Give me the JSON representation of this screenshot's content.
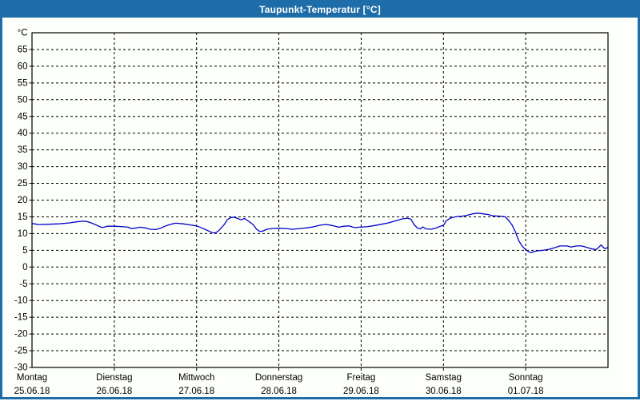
{
  "window": {
    "title": "Taupunkt-Temperatur [°C]",
    "title_bar_color": "#1e6da8",
    "background_color": "#fdfffb"
  },
  "chart_data": {
    "type": "line",
    "title": "Taupunkt-Temperatur [°C]",
    "y_unit_label": "°C",
    "ylabel": "",
    "xlabel": "",
    "ylim": [
      -30,
      70
    ],
    "y_tick_step": 5,
    "y_ticks": [
      65,
      60,
      55,
      50,
      45,
      40,
      35,
      30,
      25,
      20,
      15,
      10,
      5,
      0,
      -5,
      -10,
      -15,
      -20,
      -25,
      -30
    ],
    "xlim_hours": [
      0,
      168
    ],
    "grid": "dashed",
    "legend": "none",
    "line_color": "#0000cc",
    "x_days": [
      {
        "name": "Montag",
        "date": "25.06.18"
      },
      {
        "name": "Dienstag",
        "date": "26.06.18"
      },
      {
        "name": "Mittwoch",
        "date": "27.06.18"
      },
      {
        "name": "Donnerstag",
        "date": "28.06.18"
      },
      {
        "name": "Freitag",
        "date": "29.06.18"
      },
      {
        "name": "Samstag",
        "date": "30.06.18"
      },
      {
        "name": "Sonntag",
        "date": "01.07.18"
      }
    ],
    "series": [
      {
        "name": "Taupunkt-Temperatur",
        "x_hours": [
          0,
          2,
          5,
          8,
          11,
          13,
          15,
          16,
          17.5,
          19.5,
          20.5,
          22,
          24,
          26,
          28,
          29,
          30.5,
          31.5,
          33,
          34.5,
          36,
          37.5,
          39,
          41,
          42,
          44,
          46,
          48,
          49.5,
          51,
          52.5,
          53.5,
          54.5,
          56,
          57,
          58,
          59,
          60,
          61,
          62,
          63,
          64.5,
          65.5,
          66.5,
          67.5,
          68.5,
          70,
          72,
          74,
          76,
          78,
          80,
          82,
          84.5,
          86,
          87.5,
          89.5,
          91,
          92.5,
          94,
          95.5,
          96,
          98,
          100,
          102,
          104,
          106,
          108,
          109.5,
          110.5,
          111.5,
          112.5,
          113.3,
          114,
          114.8,
          116.5,
          118,
          119.3,
          120,
          120.8,
          122,
          123.5,
          125.5,
          127,
          128.5,
          130,
          131.5,
          133,
          134.5,
          136.5,
          138,
          138.8,
          140,
          141,
          142,
          143,
          144,
          144.8,
          145.6,
          147,
          149,
          150.8,
          152.5,
          154,
          156,
          157.3,
          158.8,
          160.3,
          161.8,
          163,
          164.5,
          165.3,
          166,
          166.8,
          167.4,
          168
        ],
        "values": [
          13.0,
          12.7,
          12.8,
          12.9,
          13.2,
          13.5,
          13.7,
          13.6,
          13.1,
          12.2,
          11.8,
          12.2,
          12.2,
          12.1,
          11.9,
          11.5,
          11.7,
          11.9,
          11.7,
          11.3,
          11.2,
          11.6,
          12.3,
          12.9,
          13.1,
          12.9,
          12.6,
          12.3,
          11.7,
          11.0,
          10.3,
          10.2,
          10.9,
          12.6,
          14.2,
          14.8,
          14.9,
          14.5,
          14.1,
          14.5,
          13.8,
          12.7,
          11.3,
          10.6,
          10.8,
          11.3,
          11.5,
          11.6,
          11.5,
          11.3,
          11.5,
          11.7,
          12.0,
          12.6,
          12.7,
          12.4,
          11.9,
          12.2,
          12.3,
          11.8,
          11.9,
          11.9,
          12.1,
          12.4,
          12.8,
          13.2,
          13.8,
          14.4,
          14.6,
          14.3,
          12.6,
          11.6,
          11.4,
          12.0,
          11.4,
          11.3,
          11.7,
          12.3,
          12.4,
          13.8,
          14.6,
          15.0,
          15.2,
          15.5,
          15.9,
          16.1,
          15.9,
          15.7,
          15.3,
          15.2,
          15.0,
          14.2,
          12.6,
          10.5,
          7.8,
          6.2,
          5.2,
          4.6,
          4.3,
          4.8,
          5.0,
          5.3,
          5.8,
          6.3,
          6.3,
          6.0,
          6.3,
          6.3,
          5.9,
          5.5,
          5.2,
          5.9,
          6.6,
          5.7,
          5.5,
          6.0
        ]
      }
    ]
  }
}
